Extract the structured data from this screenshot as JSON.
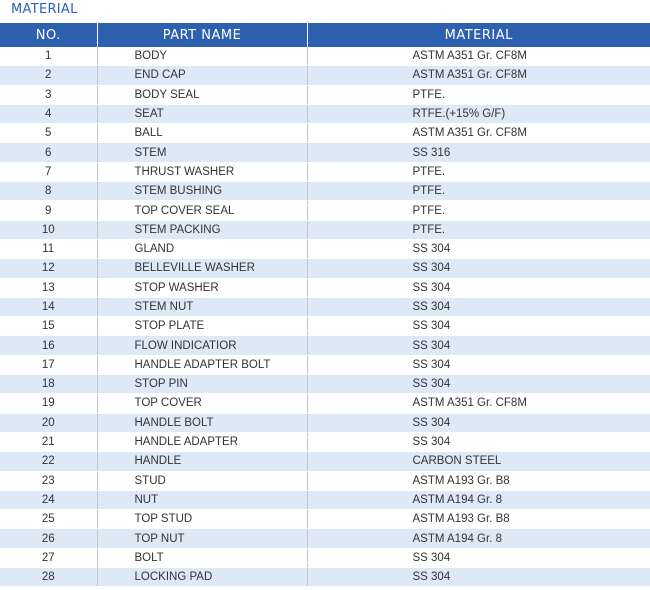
{
  "heading": "MATERIAL",
  "columns": {
    "no": "NO.",
    "part_name": "PART NAME",
    "material": "MATERIAL"
  },
  "rows": [
    {
      "no": "1",
      "part": "BODY",
      "material": "ASTM A351 Gr. CF8M"
    },
    {
      "no": "2",
      "part": "END CAP",
      "material": "ASTM A351 Gr. CF8M"
    },
    {
      "no": "3",
      "part": "BODY SEAL",
      "material": "PTFE."
    },
    {
      "no": "4",
      "part": "SEAT",
      "material": "RTFE.(+15% G/F)"
    },
    {
      "no": "5",
      "part": "BALL",
      "material": "ASTM A351 Gr. CF8M"
    },
    {
      "no": "6",
      "part": "STEM",
      "material": "SS 316"
    },
    {
      "no": "7",
      "part": "THRUST WASHER",
      "material": "PTFE."
    },
    {
      "no": "8",
      "part": "STEM BUSHING",
      "material": "PTFE."
    },
    {
      "no": "9",
      "part": "TOP COVER SEAL",
      "material": "PTFE."
    },
    {
      "no": "10",
      "part": "STEM PACKING",
      "material": "PTFE."
    },
    {
      "no": "11",
      "part": "GLAND",
      "material": "SS 304"
    },
    {
      "no": "12",
      "part": "BELLEVILLE WASHER",
      "material": "SS 304"
    },
    {
      "no": "13",
      "part": "STOP WASHER",
      "material": "SS 304"
    },
    {
      "no": "14",
      "part": "STEM NUT",
      "material": "SS 304"
    },
    {
      "no": "15",
      "part": "STOP PLATE",
      "material": "SS 304"
    },
    {
      "no": "16",
      "part": "FLOW INDICATIOR",
      "material": "SS 304"
    },
    {
      "no": "17",
      "part": "HANDLE ADAPTER BOLT",
      "material": "SS 304"
    },
    {
      "no": "18",
      "part": "STOP PIN",
      "material": "SS 304"
    },
    {
      "no": "19",
      "part": "TOP COVER",
      "material": "ASTM A351 Gr. CF8M"
    },
    {
      "no": "20",
      "part": "HANDLE BOLT",
      "material": "SS 304"
    },
    {
      "no": "21",
      "part": "HANDLE ADAPTER",
      "material": "SS 304"
    },
    {
      "no": "22",
      "part": "HANDLE",
      "material": "CARBON STEEL"
    },
    {
      "no": "23",
      "part": "STUD",
      "material": "ASTM A193 Gr. B8"
    },
    {
      "no": "24",
      "part": "NUT",
      "material": "ASTM A194 Gr. 8"
    },
    {
      "no": "25",
      "part": "TOP STUD",
      "material": "ASTM A193 Gr. B8"
    },
    {
      "no": "26",
      "part": "TOP NUT",
      "material": "ASTM A194 Gr. 8"
    },
    {
      "no": "27",
      "part": "BOLT",
      "material": "SS 304"
    },
    {
      "no": "28",
      "part": "LOCKING PAD",
      "material": "SS 304"
    }
  ],
  "colors": {
    "heading": "#2a62b8",
    "header_bg": "#2d61b0",
    "stripe": "#dde9f7"
  }
}
